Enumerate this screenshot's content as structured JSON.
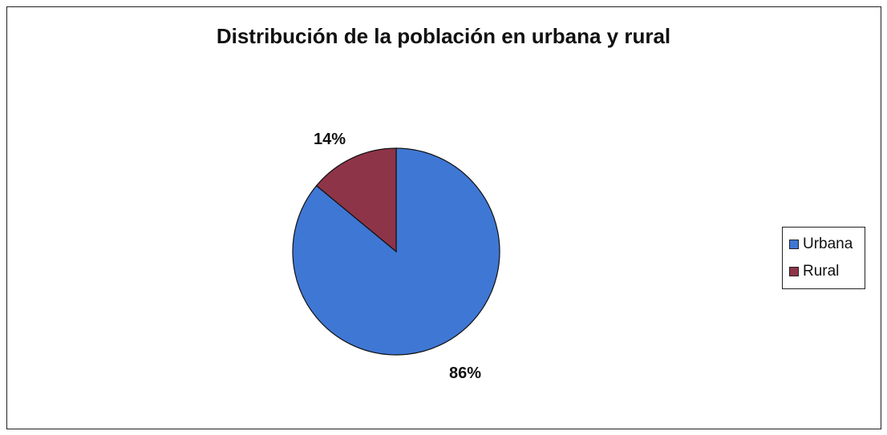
{
  "chart_data": {
    "type": "pie",
    "title": "Distribución de la población en urbana y rural",
    "categories": [
      "Urbana",
      "Rural"
    ],
    "values": [
      86,
      14
    ],
    "labels": [
      "86%",
      "14%"
    ],
    "colors": [
      "#3f77d4",
      "#8e3448"
    ],
    "legend": {
      "position": "right",
      "entries": [
        "Urbana",
        "Rural"
      ]
    }
  }
}
